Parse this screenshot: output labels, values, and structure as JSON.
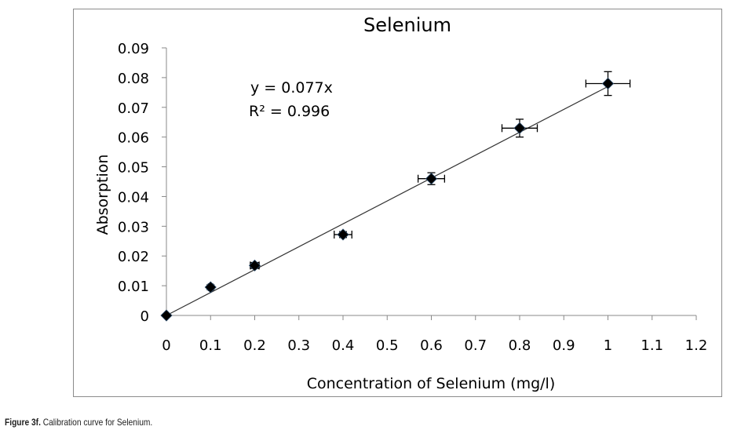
{
  "chart_data": {
    "type": "scatter",
    "title": "Selenium",
    "xlabel": "Concentration of Selenium (mg/l)",
    "ylabel": "Absorption",
    "xlim": [
      0,
      1.2
    ],
    "ylim": [
      0,
      0.09
    ],
    "xticks": [
      "0",
      "0.1",
      "0.2",
      "0.3",
      "0.4",
      "0.5",
      "0.6",
      "0.7",
      "0.8",
      "0.9",
      "1",
      "1.1",
      "1.2"
    ],
    "yticks": [
      "0",
      "0.01",
      "0.02",
      "0.03",
      "0.04",
      "0.05",
      "0.06",
      "0.07",
      "0.08",
      "0.09"
    ],
    "grid": false,
    "series": [
      {
        "name": "Selenium",
        "x": [
          0,
          0.1,
          0.2,
          0.4,
          0.6,
          0.8,
          1.0
        ],
        "y": [
          0,
          0.0095,
          0.0168,
          0.0272,
          0.046,
          0.063,
          0.078
        ],
        "x_err": [
          0,
          0.005,
          0.01,
          0.02,
          0.03,
          0.04,
          0.05
        ],
        "y_err": [
          0,
          0.0008,
          0.001,
          0.001,
          0.002,
          0.003,
          0.004
        ]
      }
    ],
    "trendline": {
      "slope": 0.077,
      "intercept": 0
    },
    "annotations": [
      "y = 0.077x",
      "R² = 0.996"
    ]
  },
  "caption": {
    "label": "Figure 3f.",
    "text": " Calibration curve for Selenium."
  }
}
